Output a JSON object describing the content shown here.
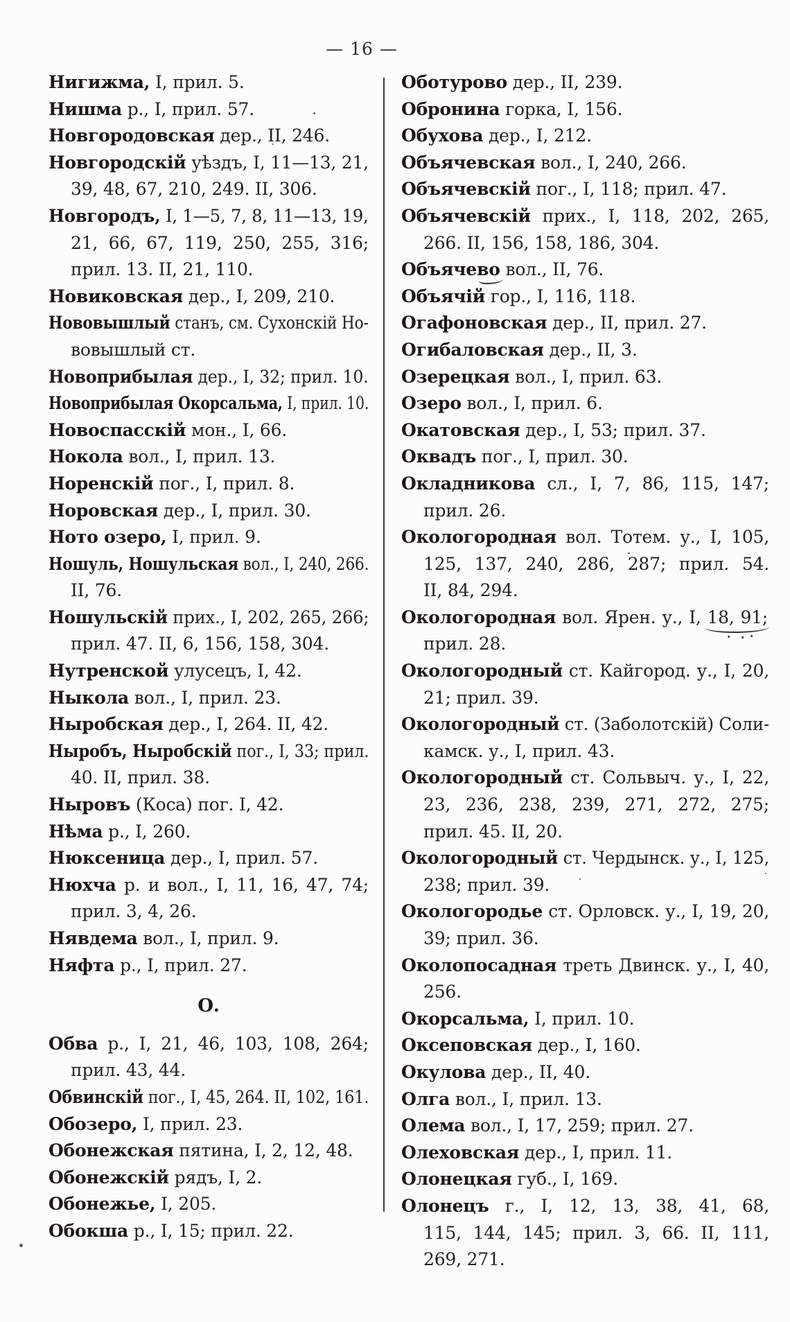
{
  "page": {
    "header": "— 16 —"
  },
  "columns": {
    "left": [
      {
        "b": "Нигижма,",
        "l": [
          "Нигижма, I, прил. 5."
        ]
      },
      {
        "b": "Нишма",
        "l": [
          "Нишма р., I, прил. 57."
        ]
      },
      {
        "b": "Новгородовская",
        "l": [
          "Новгородовская дер., II, 246."
        ]
      },
      {
        "b": "Новгородскій",
        "l": [
          "Новгородскій уѣздъ, I, 11—13, 21,",
          "39, 48, 67, 210, 249. II, 306."
        ]
      },
      {
        "b": "Новгородъ,",
        "l": [
          "Новгородъ, I, 1—5, 7, 8, 11—13, 19,",
          "21, 66, 67, 119, 250, 255, 316;",
          "прил. 13. II, 21, 110."
        ]
      },
      {
        "b": "Новиковская",
        "l": [
          "Новиковская дер., I, 209, 210."
        ]
      },
      {
        "b": "Нововышлый",
        "l": [
          "Нововышлый станъ, см. Сухонскій Но-",
          "вовышлый ст."
        ]
      },
      {
        "b": "Новоприбылая",
        "l": [
          "Новоприбылая дер., I, 32; прил. 10."
        ]
      },
      {
        "b": "Новоприбылая Окорсальма,",
        "l": [
          "Новоприбылая Окорсальма, I, прил. 10."
        ]
      },
      {
        "b": "Новоспасскій",
        "l": [
          "Новоспасскій мон., I, 66."
        ]
      },
      {
        "b": "Нокола",
        "l": [
          "Нокола вол., I, прил. 13."
        ]
      },
      {
        "b": "Норенскій",
        "l": [
          "Норенскій пог., I, прил. 8."
        ]
      },
      {
        "b": "Норовская",
        "l": [
          "Норовская дер., I, прил. 30."
        ]
      },
      {
        "b": "Ното озеро,",
        "l": [
          "Ното озеро, I, прил. 9."
        ]
      },
      {
        "b": "Ношуль, Ношульская",
        "l": [
          "Ношуль, Ношульская вол., I, 240, 266.",
          "II, 76."
        ]
      },
      {
        "b": "Ношульскій",
        "l": [
          "Ношульскій прих., I, 202, 265, 266;",
          "прил. 47. II, 6, 156, 158, 304."
        ]
      },
      {
        "b": "Нутренской",
        "l": [
          "Нутренской улусецъ, I, 42."
        ]
      },
      {
        "b": "Ныкола",
        "l": [
          "Ныкола вол., I, прил. 23."
        ]
      },
      {
        "b": "Ныробская",
        "l": [
          "Ныробская дер., I, 264. II, 42."
        ]
      },
      {
        "b": "Ныробъ, Ныробскій",
        "l": [
          "Ныробъ, Ныробскій пог., I, 33; прил.",
          "40. II, прил. 38."
        ]
      },
      {
        "b": "Ныровъ",
        "l": [
          "Ныровъ (Коса) пог. I, 42."
        ]
      },
      {
        "b": "Нѣма",
        "l": [
          "Нѣма р., I, 260."
        ]
      },
      {
        "b": "Нюксеница",
        "l": [
          "Нюксеница дер., I, прил. 57."
        ]
      },
      {
        "b": "Нюхча",
        "l": [
          "Нюхча р. и вол., I, 11, 16, 47, 74;",
          "прил. 3, 4, 26."
        ]
      },
      {
        "b": "Нявдема",
        "l": [
          "Нявдема вол., I, прил. 9."
        ]
      },
      {
        "b": "Няфта",
        "l": [
          "Няфта р., I, прил. 27."
        ]
      },
      {
        "s": "О."
      },
      {
        "b": "Обва",
        "l": [
          "Обва р., I, 21, 46, 103, 108, 264;",
          "прил. 43, 44."
        ]
      },
      {
        "b": "Обвинскій",
        "l": [
          "Обвинскій пог., I, 45, 264. II, 102, 161."
        ]
      },
      {
        "b": "Обозеро,",
        "l": [
          "Обозеро, I, прил. 23."
        ]
      },
      {
        "b": "Обонежская",
        "l": [
          "Обонежская пятина, I, 2, 12, 48."
        ]
      },
      {
        "b": "Обонежскій",
        "l": [
          "Обонежскій рядъ, I, 2."
        ]
      },
      {
        "b": "Обонежье,",
        "l": [
          "Обонежье, I, 205."
        ]
      },
      {
        "b": "Обокша",
        "l": [
          "Обокша р., I, 15; прил. 22."
        ]
      }
    ],
    "right": [
      {
        "b": "Оботурово",
        "l": [
          "Оботурово дер., II, 239."
        ]
      },
      {
        "b": "Обронина",
        "l": [
          "Обронина горка, I, 156."
        ]
      },
      {
        "b": "Обухова",
        "l": [
          "Обухова дер., I, 212."
        ]
      },
      {
        "b": "Объячевская",
        "l": [
          "Объячевская вол., I, 240, 266."
        ]
      },
      {
        "b": "Объячевскій",
        "l": [
          "Объячевскій пог., I, 118; прил. 47."
        ]
      },
      {
        "b": "Объячевскій",
        "l": [
          "Объячевскій прих., I, 118, 202, 265,",
          "266. II, 156, 158, 186, 304."
        ]
      },
      {
        "b": "Объячево",
        "l": [
          "Объячево вол., II, 76."
        ],
        "u": "во",
        "um": "tick"
      },
      {
        "b": "Объячій",
        "l": [
          "Объячій гор., I, 116, 118."
        ]
      },
      {
        "b": "Огафоновская",
        "l": [
          "Огафоновская дер., II, прил. 27."
        ]
      },
      {
        "b": "Огибаловская",
        "l": [
          "Огибаловская дер., II, 3."
        ]
      },
      {
        "b": "Озерецкая",
        "l": [
          "Озерецкая вол., I, прил. 63."
        ]
      },
      {
        "b": "Озеро",
        "l": [
          "Озеро вол., I, прил. 6."
        ]
      },
      {
        "b": "Окатовская",
        "l": [
          "Окатовская дер., I, 53; прил. 37."
        ]
      },
      {
        "b": "Оквадъ",
        "l": [
          "Оквадъ пог., I, прил. 30."
        ]
      },
      {
        "b": "Окладникова",
        "l": [
          "Окладникова сл., I, 7, 86, 115, 147;",
          "прил. 26."
        ]
      },
      {
        "b": "Окологородная",
        "l": [
          "Окологородная вол. Тотем. у., I, 105,",
          "125, 137, 240, 286, 287; прил. 54.",
          "II, 84, 294."
        ]
      },
      {
        "b": "Окологородная",
        "l": [
          "Окологородная вол. Ярен. у., I, 18, 91;",
          "прил. 28."
        ],
        "u": "18, 91;",
        "um": "wavy"
      },
      {
        "b": "Окологородный",
        "l": [
          "Окологородный ст. Кайгород. у., I, 20,",
          "21; прил. 39."
        ]
      },
      {
        "b": "Окологородный",
        "l": [
          "Окологородный ст. (Заболотскій) Соли-",
          "камск. у., I, прил. 43."
        ]
      },
      {
        "b": "Окологородный",
        "l": [
          "Окологородный ст. Сольвыч. у., I, 22,",
          "23, 236, 238, 239, 271, 272, 275;",
          "прил. 45. II, 20."
        ]
      },
      {
        "b": "Окологородный",
        "l": [
          "Окологородный ст. Чердынск. у., I, 125,",
          "238; прил. 39."
        ]
      },
      {
        "b": "Окологородье",
        "l": [
          "Окологородье ст. Орловск. у., I, 19, 20,",
          "39; прил. 36."
        ]
      },
      {
        "b": "Околопосадная",
        "l": [
          "Околопосадная треть Двинск. у., I, 40,",
          "256."
        ]
      },
      {
        "b": "Окорсальма,",
        "l": [
          "Окорсальма, I, прил. 10."
        ]
      },
      {
        "b": "Оксеповская",
        "l": [
          "Оксеповская дер., I, 160."
        ]
      },
      {
        "b": "Окулова",
        "l": [
          "Окулова дер., II, 40."
        ]
      },
      {
        "b": "Олга",
        "l": [
          "Олга вол., I, прил. 13."
        ]
      },
      {
        "b": "Олема",
        "l": [
          "Олема вол., I, 17, 259; прил. 27."
        ]
      },
      {
        "b": "Олеховская",
        "l": [
          "Олеховская дер., I, прил. 11."
        ]
      },
      {
        "b": "Олонецкая",
        "l": [
          "Олонецкая губ., I, 169."
        ]
      },
      {
        "b": "Олонецъ",
        "l": [
          "Олонецъ г., I, 12, 13, 38, 41, 68,",
          "115, 144, 145; прил. 3, 66. II, 111,",
          "269, 271."
        ]
      }
    ]
  }
}
